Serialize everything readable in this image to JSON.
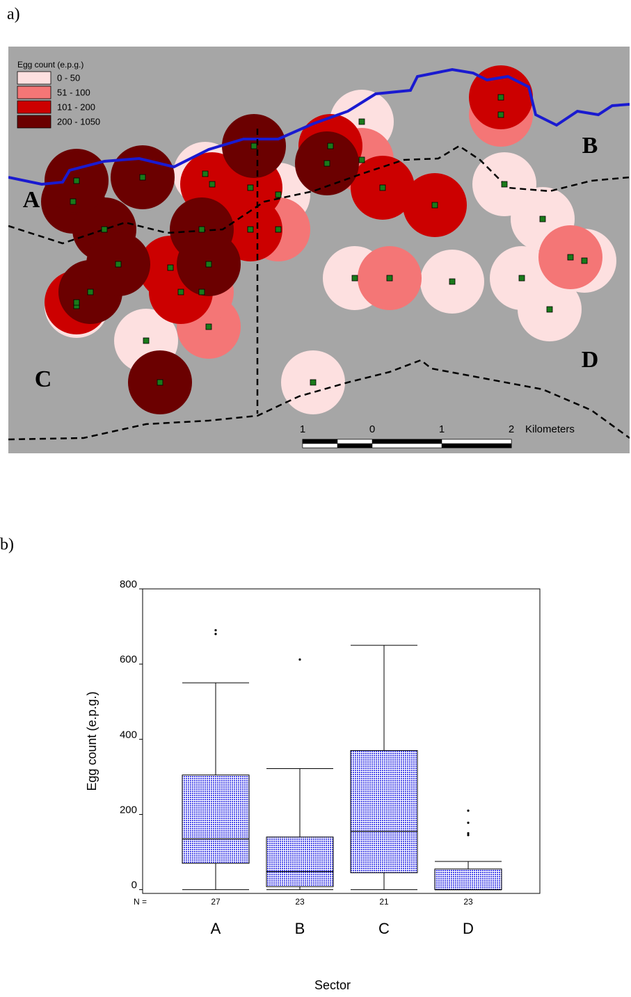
{
  "panels": [
    "a)",
    "b)"
  ],
  "map": {
    "legend_title": "Egg count (e.p.g.)",
    "legend": [
      {
        "label": "0 - 50",
        "color": "#fde0e0"
      },
      {
        "label": "51 - 100",
        "color": "#f47676"
      },
      {
        "label": "101 - 200",
        "color": "#cc0000"
      },
      {
        "label": "200 - 1050",
        "color": "#6b0000"
      }
    ],
    "sectors": [
      "A",
      "B",
      "C",
      "D"
    ],
    "scale_labels": [
      "1",
      "0",
      "1",
      "2"
    ],
    "scale_unit": "Kilometers"
  },
  "chart_data": {
    "type": "box",
    "y_label": "Egg count (e.p.g.)",
    "x_label": "Sector",
    "categories": [
      "A",
      "B",
      "C",
      "D"
    ],
    "n_label": "N =",
    "n": [
      27,
      23,
      21,
      23
    ],
    "color": "#4a4ae8",
    "boxes": [
      {
        "min": 0,
        "q1": 70,
        "median": 135,
        "q3": 305,
        "max": 550,
        "outliers": [
          680,
          690
        ]
      },
      {
        "min": 0,
        "q1": 8,
        "median": 48,
        "q3": 140,
        "max": 322,
        "outliers": [
          612
        ]
      },
      {
        "min": 0,
        "q1": 45,
        "median": 155,
        "q3": 370,
        "max": 650,
        "outliers": []
      },
      {
        "min": 0,
        "q1": 0,
        "median": 0,
        "q3": 55,
        "max": 75,
        "outliers": [
          145,
          150,
          178,
          210
        ]
      }
    ],
    "ylim": [
      -10,
      800
    ],
    "yticks": [
      0,
      200,
      400,
      600,
      800
    ]
  }
}
